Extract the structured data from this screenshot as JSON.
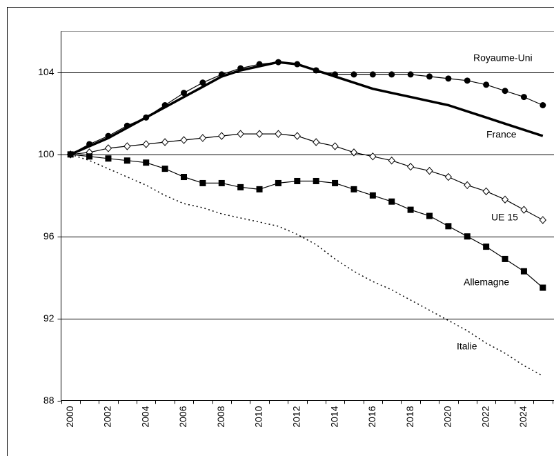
{
  "chart_data": {
    "type": "line",
    "categories": [
      "2000",
      null,
      "2002",
      null,
      "2004",
      null,
      "2006",
      null,
      "2008",
      null,
      "2010",
      null,
      "2012",
      null,
      "2014",
      null,
      "2016",
      null,
      "2018",
      null,
      "2020",
      null,
      "2022",
      null,
      "2024",
      null
    ],
    "ylim": [
      88,
      106
    ],
    "yticks": [
      88,
      92,
      96,
      100,
      104
    ],
    "grid": true,
    "series": [
      {
        "name": "Royaume-Uni",
        "color": "#000000",
        "marker": "circle",
        "line_style": "thin",
        "values": [
          100,
          100.5,
          100.9,
          101.4,
          101.8,
          102.4,
          103.0,
          103.5,
          103.9,
          104.2,
          104.4,
          104.5,
          104.4,
          104.1,
          103.9,
          103.9,
          103.9,
          103.9,
          103.9,
          103.8,
          103.7,
          103.6,
          103.4,
          103.1,
          102.8,
          102.4
        ]
      },
      {
        "name": "France",
        "color": "#000000",
        "marker": "none",
        "line_style": "thick",
        "values": [
          100,
          100.4,
          100.8,
          101.3,
          101.8,
          102.3,
          102.8,
          103.3,
          103.8,
          104.1,
          104.3,
          104.5,
          104.4,
          104.1,
          103.8,
          103.5,
          103.2,
          103.0,
          102.8,
          102.6,
          102.4,
          102.1,
          101.8,
          101.5,
          101.2,
          100.9
        ]
      },
      {
        "name": "UE 15",
        "color": "#000000",
        "marker": "diamond",
        "line_style": "thin",
        "values": [
          100,
          100.1,
          100.3,
          100.4,
          100.5,
          100.6,
          100.7,
          100.8,
          100.9,
          101.0,
          101.0,
          101.0,
          100.9,
          100.6,
          100.4,
          100.1,
          99.9,
          99.7,
          99.4,
          99.2,
          98.9,
          98.5,
          98.2,
          97.8,
          97.3,
          96.8
        ]
      },
      {
        "name": "Allemagne",
        "color": "#000000",
        "marker": "square",
        "line_style": "thin",
        "values": [
          100,
          99.9,
          99.8,
          99.7,
          99.6,
          99.3,
          98.9,
          98.6,
          98.6,
          98.4,
          98.3,
          98.6,
          98.7,
          98.7,
          98.6,
          98.3,
          98.0,
          97.7,
          97.3,
          97.0,
          96.5,
          96.0,
          95.5,
          94.9,
          94.3,
          93.5
        ]
      },
      {
        "name": "Italie",
        "color": "#000000",
        "marker": "none",
        "line_style": "dotted",
        "values": [
          100,
          99.7,
          99.3,
          98.9,
          98.5,
          98.0,
          97.6,
          97.4,
          97.1,
          96.9,
          96.7,
          96.5,
          96.1,
          95.6,
          94.9,
          94.3,
          93.8,
          93.4,
          92.9,
          92.4,
          91.9,
          91.4,
          90.8,
          90.3,
          89.7,
          89.2
        ]
      }
    ]
  }
}
